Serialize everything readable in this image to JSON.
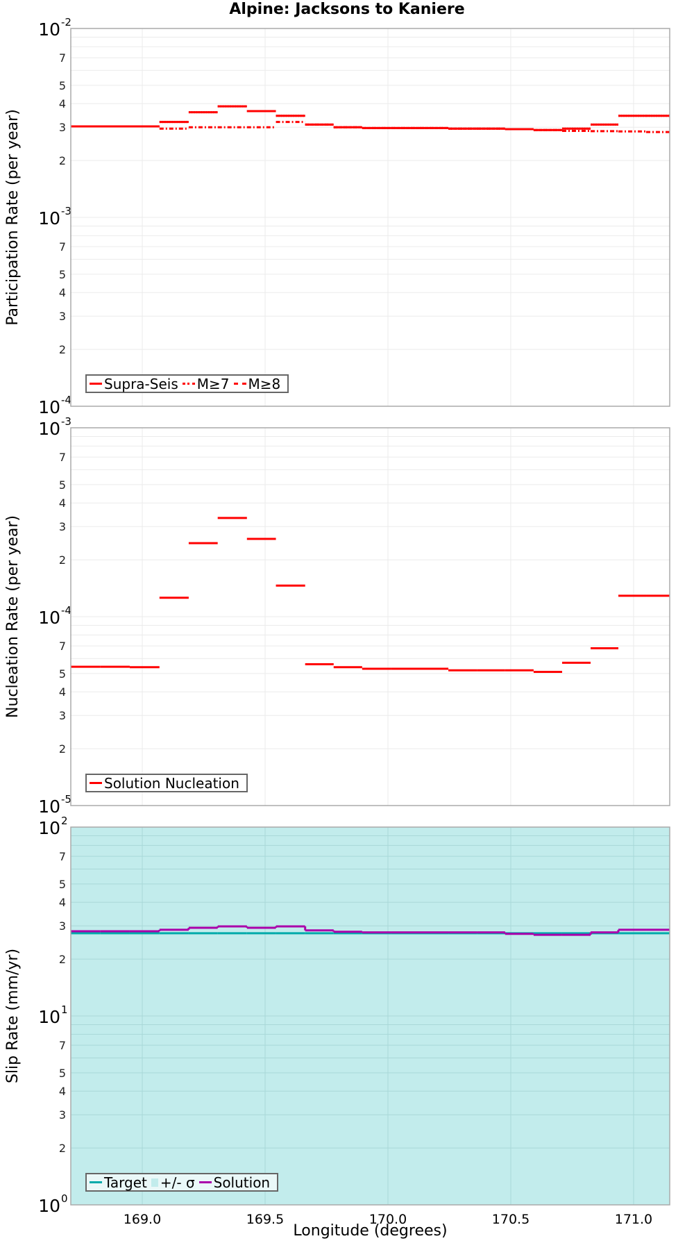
{
  "title": "Alpine: Jacksons to Kaniere",
  "x_axis": {
    "label": "Longitude (degrees)",
    "ticks": [
      "169.0",
      "169.5",
      "170.0",
      "170.5",
      "171.0"
    ],
    "tick_values": [
      169.0,
      169.5,
      170.0,
      170.5,
      171.0
    ],
    "range": [
      168.709,
      171.147
    ]
  },
  "panels": [
    {
      "ylabel": "Participation Rate (per year)",
      "ylim_exp": [
        -4,
        -2
      ],
      "decade_labels": [
        {
          "base": "10",
          "exp": "-2"
        },
        {
          "base": "10",
          "exp": "-3"
        },
        {
          "base": "10",
          "exp": "-4"
        }
      ],
      "minor_labels": [
        "7",
        "5",
        "4",
        "3",
        "2"
      ],
      "legend": [
        {
          "label": "Supra-Seis",
          "style": "solid",
          "color": "#ff0000"
        },
        {
          "label": "M≥7",
          "style": "dotted",
          "color": "#ff0000"
        },
        {
          "label": "M≥8",
          "style": "dashdot",
          "color": "#ff0000"
        }
      ]
    },
    {
      "ylabel": "Nucleation Rate (per year)",
      "ylim_exp": [
        -5,
        -3
      ],
      "decade_labels": [
        {
          "base": "10",
          "exp": "-3"
        },
        {
          "base": "10",
          "exp": "-4"
        },
        {
          "base": "10",
          "exp": "-5"
        }
      ],
      "minor_labels": [
        "7",
        "5",
        "4",
        "3",
        "2"
      ],
      "legend": [
        {
          "label": "Solution Nucleation",
          "style": "solid",
          "color": "#ff0000"
        }
      ]
    },
    {
      "ylabel": "Slip Rate (mm/yr)",
      "ylim_exp": [
        0,
        2
      ],
      "decade_labels": [
        {
          "base": "10",
          "exp": "2"
        },
        {
          "base": "10",
          "exp": "1"
        },
        {
          "base": "10",
          "exp": "0"
        }
      ],
      "minor_labels": [
        "7",
        "5",
        "4",
        "3",
        "2"
      ],
      "legend": [
        {
          "label": "Target",
          "style": "solid",
          "color": "#00aaaa"
        },
        {
          "label": "+/- σ",
          "style": "box",
          "color": "#c2ecec"
        },
        {
          "label": "Solution",
          "style": "solid",
          "color": "#aa00aa"
        }
      ]
    }
  ],
  "chart_data": [
    {
      "type": "line",
      "title": "Alpine: Jacksons to Kaniere",
      "xlabel": "Longitude (degrees)",
      "ylabel": "Participation Rate (per year)",
      "yscale": "log",
      "ylim": [
        0.0001,
        0.01
      ],
      "xlim": [
        168.709,
        171.147
      ],
      "grid": true,
      "legend_position": "lower left",
      "bin_edges": [
        168.709,
        168.83,
        168.949,
        169.07,
        169.189,
        169.307,
        169.426,
        169.544,
        169.663,
        169.779,
        169.895,
        170.014,
        170.13,
        170.246,
        170.362,
        170.477,
        170.593,
        170.709,
        170.825,
        170.938,
        171.051,
        171.147
      ],
      "series": [
        {
          "name": "Supra-Seis",
          "style": "solid",
          "color": "#ff0000",
          "values": [
            0.00303,
            0.00303,
            0.00303,
            0.0032,
            0.0036,
            0.00387,
            0.00365,
            0.00345,
            0.0031,
            0.003,
            0.00297,
            0.00297,
            0.00297,
            0.00295,
            0.00295,
            0.00293,
            0.0029,
            0.00295,
            0.0031,
            0.00345,
            0.00345
          ]
        },
        {
          "name": "M≥7",
          "style": "dotted",
          "color": "#ff0000",
          "values": [
            0.00303,
            0.00303,
            0.00303,
            0.0032,
            0.0036,
            0.00387,
            0.00365,
            0.00345,
            0.0031,
            0.003,
            0.00297,
            0.00297,
            0.00297,
            0.00295,
            0.00295,
            0.00293,
            0.0029,
            0.00295,
            0.0031,
            0.00345,
            0.00345
          ]
        },
        {
          "name": "M≥8",
          "style": "dashdot",
          "color": "#ff0000",
          "values": [
            0.00303,
            0.00303,
            0.00303,
            0.00295,
            0.003,
            0.003,
            0.003,
            0.0032,
            0.0031,
            0.003,
            0.00297,
            0.00297,
            0.00297,
            0.00295,
            0.00295,
            0.00293,
            0.0029,
            0.00287,
            0.00286,
            0.00285,
            0.00283
          ]
        }
      ]
    },
    {
      "type": "line",
      "xlabel": "Longitude (degrees)",
      "ylabel": "Nucleation Rate (per year)",
      "yscale": "log",
      "ylim": [
        1e-05,
        0.001
      ],
      "xlim": [
        168.709,
        171.147
      ],
      "grid": true,
      "legend_position": "lower left",
      "bin_edges": [
        168.709,
        168.83,
        168.949,
        169.07,
        169.189,
        169.307,
        169.426,
        169.544,
        169.663,
        169.779,
        169.895,
        170.014,
        170.13,
        170.246,
        170.362,
        170.477,
        170.593,
        170.709,
        170.825,
        170.938,
        171.051,
        171.147
      ],
      "series": [
        {
          "name": "Solution Nucleation",
          "style": "solid",
          "color": "#ff0000",
          "values": [
            5.43e-05,
            5.43e-05,
            5.4e-05,
            0.000126,
            0.000245,
            0.000333,
            0.000258,
            0.000146,
            5.6e-05,
            5.4e-05,
            5.3e-05,
            5.3e-05,
            5.3e-05,
            5.2e-05,
            5.2e-05,
            5.2e-05,
            5.1e-05,
            5.7e-05,
            6.8e-05,
            0.000129,
            0.000129
          ]
        }
      ]
    },
    {
      "type": "line",
      "xlabel": "Longitude (degrees)",
      "ylabel": "Slip Rate (mm/yr)",
      "yscale": "log",
      "ylim": [
        1,
        100
      ],
      "xlim": [
        168.709,
        171.147
      ],
      "grid": true,
      "legend_position": "lower left",
      "bin_edges": [
        168.709,
        168.83,
        168.949,
        169.07,
        169.189,
        169.307,
        169.426,
        169.544,
        169.663,
        169.779,
        169.895,
        170.014,
        170.13,
        170.246,
        170.362,
        170.477,
        170.593,
        170.709,
        170.825,
        170.938,
        171.051,
        171.147
      ],
      "series": [
        {
          "name": "Target",
          "style": "solid",
          "color": "#00aaaa",
          "values": [
            27.4,
            27.4,
            27.4,
            27.4,
            27.4,
            27.4,
            27.4,
            27.4,
            27.4,
            27.4,
            27.4,
            27.4,
            27.4,
            27.4,
            27.4,
            27.4,
            27.4,
            27.4,
            27.4,
            27.4,
            27.4
          ]
        },
        {
          "name": "+/- σ",
          "style": "band",
          "color": "#c2ecec",
          "lower": 1,
          "upper": 100
        },
        {
          "name": "Solution",
          "style": "solid",
          "color": "#aa00aa",
          "values": [
            28.1,
            28.1,
            28.1,
            28.6,
            29.3,
            29.8,
            29.3,
            29.8,
            28.4,
            27.9,
            27.7,
            27.7,
            27.7,
            27.7,
            27.7,
            27.2,
            26.9,
            26.9,
            27.7,
            28.6,
            28.6
          ]
        }
      ]
    }
  ]
}
